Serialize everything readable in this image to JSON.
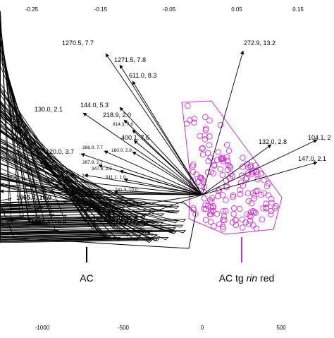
{
  "chart_data": {
    "type": "scatter",
    "title": "",
    "top_axis": {
      "ticks": [
        "-0.25",
        "-0.15",
        "-0.05",
        "0.05",
        "0.15"
      ]
    },
    "bottom_axis": {
      "ticks": [
        "-1000",
        "-500",
        "0",
        "500"
      ]
    },
    "groups": [
      {
        "name_parts": [
          "AC"
        ],
        "italic_index": -1,
        "marker": "triangle",
        "color": "#000000"
      },
      {
        "name_parts": [
          "AC tg ",
          "rin",
          " red"
        ],
        "italic_index": 1,
        "marker": "circle",
        "color": "#cc33cc"
      }
    ],
    "vectors": [
      {
        "label": "1270.5, 7.7",
        "style": "normal"
      },
      {
        "label": "1271.5, 7.8",
        "style": "normal"
      },
      {
        "label": "611.0, 8.3",
        "style": "normal"
      },
      {
        "label": "272.9, 13.2",
        "style": "normal"
      },
      {
        "label": "130.0, 2.1",
        "style": "normal"
      },
      {
        "label": "144.0, 5.3",
        "style": "normal"
      },
      {
        "label": "218.9, 2.0",
        "style": "normal"
      },
      {
        "label": "814.3, 7.8",
        "style": "small"
      },
      {
        "label": "400.1, 7.6",
        "style": "normal"
      },
      {
        "label": "268.0, 7.7",
        "style": "small"
      },
      {
        "label": "160.0, 2.9",
        "style": "small"
      },
      {
        "label": "120.0, 3.7",
        "style": "normal"
      },
      {
        "label": "267.9, 2.7",
        "style": "small"
      },
      {
        "label": "347.8, 2.5",
        "style": "small"
      },
      {
        "label": "148.0, 2.2",
        "style": "small"
      },
      {
        "label": "918.3, 8.2",
        "style": "normal"
      },
      {
        "label": "911.1, 1.0",
        "style": "small"
      },
      {
        "label": "741.3, 10.0",
        "style": "small"
      },
      {
        "label": "594.2, 8.2",
        "style": "normal"
      },
      {
        "label": "579.2, 10.0",
        "style": "small"
      },
      {
        "label": "1065.4, 10.0",
        "style": "bold"
      },
      {
        "label": "1066.4, 10.0",
        "style": "bold"
      },
      {
        "label": "1067.4, 10.0",
        "style": "bold"
      },
      {
        "label": "132.0, 2.8",
        "style": "normal"
      },
      {
        "label": "104.1, 2",
        "style": "normal"
      },
      {
        "label": "147.0, 2.1",
        "style": "normal"
      }
    ]
  }
}
